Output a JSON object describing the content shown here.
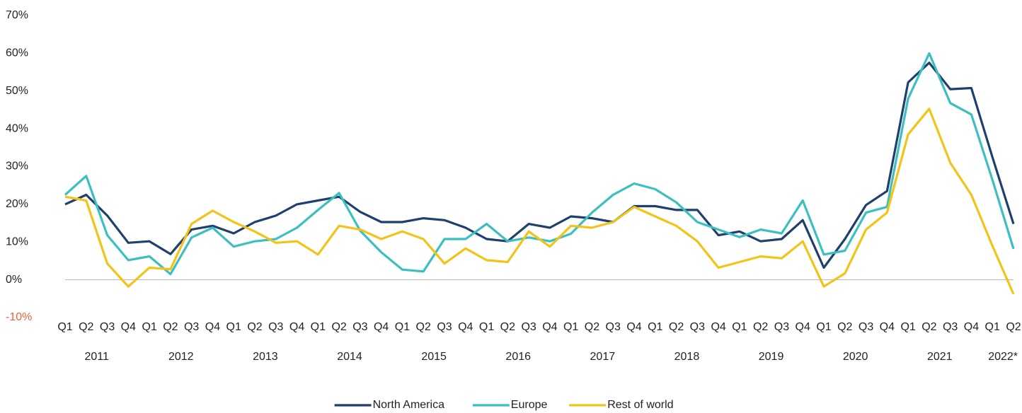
{
  "chart_data": {
    "type": "line",
    "categories": [
      "Q1",
      "Q2",
      "Q3",
      "Q4",
      "Q1",
      "Q2",
      "Q3",
      "Q4",
      "Q1",
      "Q2",
      "Q3",
      "Q4",
      "Q1",
      "Q2",
      "Q3",
      "Q4",
      "Q1",
      "Q2",
      "Q3",
      "Q4",
      "Q1",
      "Q2",
      "Q3",
      "Q4",
      "Q1",
      "Q2",
      "Q3",
      "Q4",
      "Q1",
      "Q2",
      "Q3",
      "Q4",
      "Q1",
      "Q2",
      "Q3",
      "Q4",
      "Q1",
      "Q2",
      "Q3",
      "Q4",
      "Q1",
      "Q2",
      "Q3",
      "Q4",
      "Q1",
      "Q2"
    ],
    "years": [
      "2011",
      "2012",
      "2013",
      "2014",
      "2015",
      "2016",
      "2017",
      "2018",
      "2019",
      "2020",
      "2021",
      "2022*"
    ],
    "series": [
      {
        "name": "North America",
        "color": "#1f3f6e",
        "values": [
          20,
          22.5,
          17,
          9.8,
          10.2,
          6.8,
          13.3,
          14.3,
          12.3,
          15.3,
          17,
          20,
          21,
          22,
          18,
          15.3,
          15.3,
          16.3,
          15.8,
          13.8,
          10.8,
          10.2,
          14.8,
          13.8,
          16.8,
          16.3,
          15.3,
          19.5,
          19.5,
          18.5,
          18.5,
          11.8,
          12.8,
          10.2,
          10.8,
          15.8,
          3.2,
          10.8,
          19.8,
          23.5,
          52.3,
          57.5,
          50.5,
          50.8,
          32.5,
          14.8
        ]
      },
      {
        "name": "Europe",
        "color": "#3cbfbf",
        "values": [
          22.5,
          27.5,
          11.8,
          5.2,
          6.2,
          1.5,
          11.2,
          13.8,
          8.8,
          10.2,
          10.8,
          13.8,
          18.5,
          23,
          13,
          7.3,
          2.7,
          2.2,
          10.8,
          10.8,
          14.8,
          10.2,
          11.2,
          10.2,
          12.2,
          17.8,
          22.5,
          25.5,
          24,
          20.5,
          15.3,
          13.3,
          11.3,
          13.3,
          12.3,
          21,
          6.7,
          7.7,
          17.8,
          19.3,
          48,
          60,
          46.8,
          43.8,
          26.5,
          8.2
        ]
      },
      {
        "name": "Rest of world",
        "color": "#f2c318",
        "values": [
          22,
          21,
          4.3,
          -1.8,
          3.2,
          2.8,
          14.8,
          18.3,
          15.3,
          12.8,
          9.8,
          10.2,
          6.7,
          14.3,
          13.3,
          10.8,
          12.8,
          10.8,
          4.3,
          8.3,
          5.2,
          4.7,
          12.8,
          8.8,
          14.3,
          13.8,
          15.3,
          19.3,
          16.8,
          14.3,
          10.2,
          3.2,
          4.7,
          6.2,
          5.7,
          10.2,
          -1.8,
          1.7,
          13.3,
          17.8,
          38.5,
          45.3,
          31,
          22.5,
          9,
          -3.8
        ]
      }
    ],
    "ylim": [
      -10,
      70
    ],
    "yticks": [
      {
        "value": -10,
        "label": "-10%"
      },
      {
        "value": 0,
        "label": "0%"
      },
      {
        "value": 10,
        "label": "10%"
      },
      {
        "value": 20,
        "label": "20%"
      },
      {
        "value": 30,
        "label": "30%"
      },
      {
        "value": 40,
        "label": "40%"
      },
      {
        "value": 50,
        "label": "50%"
      },
      {
        "value": 60,
        "label": "60%"
      },
      {
        "value": 70,
        "label": "70%"
      }
    ],
    "negative_label_color": "#e8643c",
    "legend": "bottom"
  }
}
